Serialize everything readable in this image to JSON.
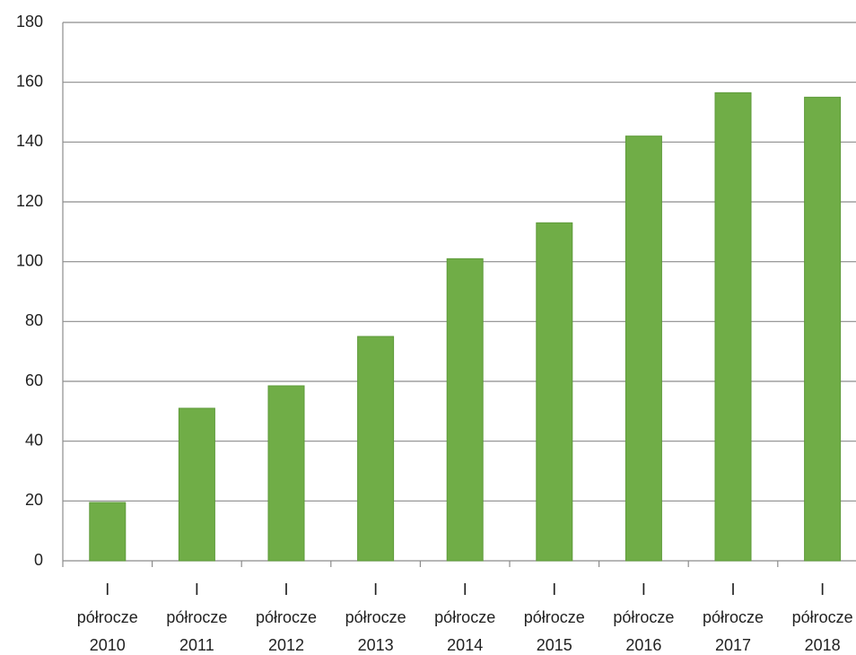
{
  "chart_data": {
    "type": "bar",
    "categories": [
      [
        "I",
        "półrocze",
        "2010"
      ],
      [
        "I",
        "półrocze",
        "2011"
      ],
      [
        "I",
        "półrocze",
        "2012"
      ],
      [
        "I",
        "półrocze",
        "2013"
      ],
      [
        "I",
        "półrocze",
        "2014"
      ],
      [
        "I",
        "półrocze",
        "2015"
      ],
      [
        "I",
        "półrocze",
        "2016"
      ],
      [
        "I",
        "półrocze",
        "2017"
      ],
      [
        "I",
        "półrocze",
        "2018"
      ]
    ],
    "values": [
      19.5,
      51,
      58.5,
      75,
      101,
      113,
      142,
      156.5,
      155
    ],
    "color": "#70ad47",
    "ylim": [
      0,
      180
    ],
    "yticks": [
      0,
      20,
      40,
      60,
      80,
      100,
      120,
      140,
      160,
      180
    ],
    "grid": true
  }
}
